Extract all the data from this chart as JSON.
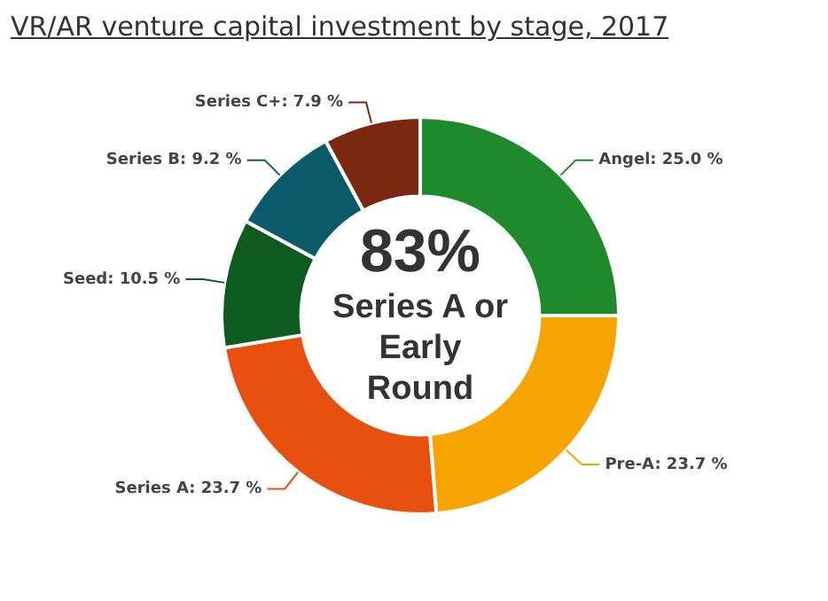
{
  "chart_data": {
    "type": "donut",
    "title": "VR/AR venture capital investment by stage, 2017",
    "categories": [
      "Angel",
      "Pre-A",
      "Series A",
      "Seed",
      "Series B",
      "Series C+"
    ],
    "values": [
      25.0,
      23.7,
      23.7,
      10.5,
      9.2,
      7.9
    ],
    "value_labels": [
      "25.0 %",
      "23.7 %",
      "23.7 %",
      "10.5 %",
      "9.2 %",
      "7.9 %"
    ],
    "colors": [
      "#1f8a2b",
      "#f6a400",
      "#e8500f",
      "#0f5a1f",
      "#0b5a6a",
      "#7a2810"
    ],
    "annotations": [
      "83%",
      "Series A or Early Round"
    ],
    "legend": false
  }
}
